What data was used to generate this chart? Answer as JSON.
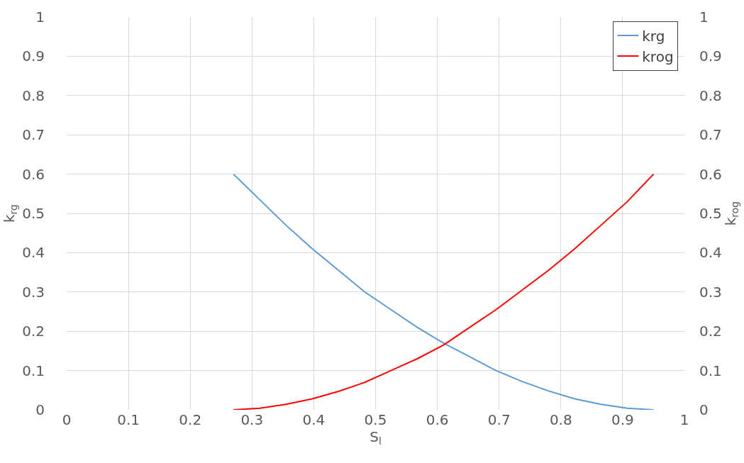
{
  "chart_data": {
    "type": "line",
    "xlabel": "S$_{l}$",
    "ylabel": "k$_{rg}$",
    "y2label": "k$_{rog}$",
    "x": [
      0.27,
      0.3125,
      0.355,
      0.3975,
      0.44,
      0.4825,
      0.525,
      0.5675,
      0.61,
      0.6525,
      0.695,
      0.7375,
      0.78,
      0.8225,
      0.865,
      0.9075,
      0.95
    ],
    "series": [
      {
        "name": "krg",
        "color": "#5b9bd5",
        "values": [
          0.6,
          0.535,
          0.47,
          0.41,
          0.355,
          0.3,
          0.255,
          0.21,
          0.17,
          0.135,
          0.1,
          0.072,
          0.048,
          0.028,
          0.014,
          0.004,
          0
        ]
      },
      {
        "name": "krog",
        "color": "#ff0000",
        "axis": "y2",
        "values": [
          0,
          0.004,
          0.014,
          0.028,
          0.047,
          0.07,
          0.1,
          0.13,
          0.165,
          0.21,
          0.255,
          0.305,
          0.355,
          0.41,
          0.47,
          0.53,
          0.6
        ]
      }
    ],
    "xlim": [
      0,
      1
    ],
    "xticks": [
      0,
      0.1,
      0.2,
      0.3,
      0.4,
      0.5,
      0.6,
      0.7,
      0.8,
      0.9,
      1
    ],
    "ylim": [
      0,
      1
    ],
    "yticks": [
      0,
      0.1,
      0.2,
      0.3,
      0.4,
      0.5,
      0.6,
      0.7,
      0.8,
      0.9,
      1
    ],
    "y2lim": [
      0,
      1
    ],
    "y2ticks": [
      0,
      0.1,
      0.2,
      0.3,
      0.4,
      0.5,
      0.6,
      0.7,
      0.8,
      0.9,
      1
    ],
    "grid": true,
    "legend": "top right",
    "marker": "none",
    "line_style": "solid"
  }
}
